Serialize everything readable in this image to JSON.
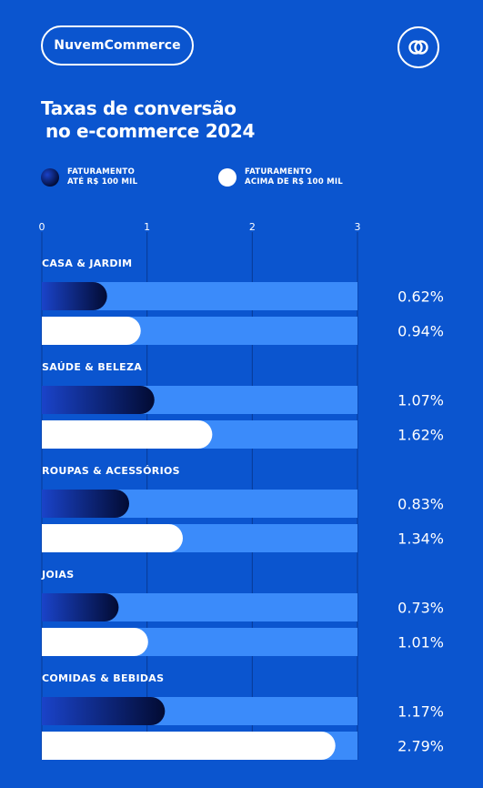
{
  "header": {
    "brand": "NuvemCommerce",
    "logo_icon": "interlocking-rings-icon"
  },
  "title": {
    "line1": "Taxas de conversão",
    "line2": "no e-commerce 2024"
  },
  "legend": [
    {
      "label": "FATURAMENTO\nATÉ R$ 100 MIL",
      "swatch": "navy-gradient"
    },
    {
      "label": "FATURAMENTO\nACIMA DE R$ 100 MIL",
      "swatch": "white"
    }
  ],
  "colors": {
    "background": "#0B55CF",
    "track": "#3B8BFA",
    "bar_small_start": "#1A43C9",
    "bar_small_end": "#020B33",
    "bar_large": "#FFFFFF",
    "grid": "#083A94"
  },
  "chart_data": {
    "type": "bar",
    "orientation": "horizontal",
    "title": "Taxas de conversão no e-commerce 2024",
    "xlim": [
      0,
      3
    ],
    "x_ticks": [
      "0",
      "1",
      "2",
      "3"
    ],
    "grid": true,
    "legend_position": "top-left",
    "categories": [
      "CASA & JARDIM",
      "SAÚDE & BELEZA",
      "ROUPAS & ACESSÓRIOS",
      "JOIAS",
      "COMIDAS & BEBIDAS"
    ],
    "series": [
      {
        "name": "FATURAMENTO ATÉ R$ 100 MIL",
        "values": [
          0.62,
          1.07,
          0.83,
          0.73,
          1.17
        ],
        "labels": [
          "0.62%",
          "1.07%",
          "0.83%",
          "0.73%",
          "1.17%"
        ]
      },
      {
        "name": "FATURAMENTO ACIMA DE R$ 100 MIL",
        "values": [
          0.94,
          1.62,
          1.34,
          1.01,
          2.79
        ],
        "labels": [
          "0.94%",
          "1.62%",
          "1.34%",
          "1.01%",
          "2.79%"
        ]
      }
    ]
  }
}
